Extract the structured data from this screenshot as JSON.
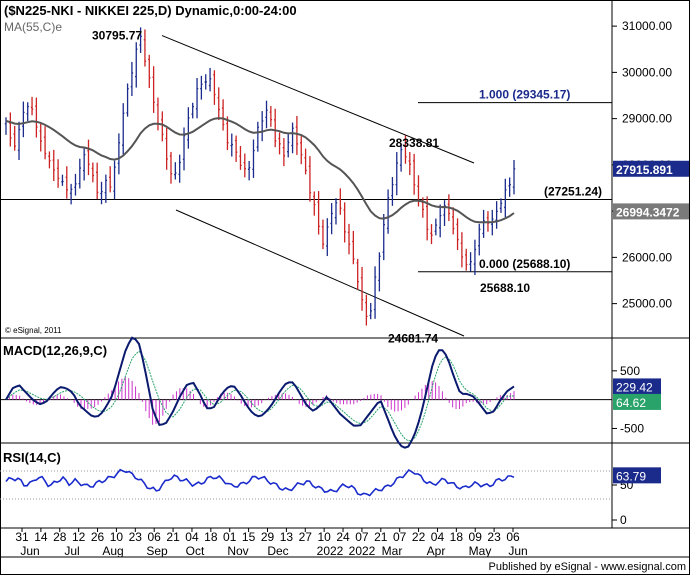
{
  "header": {
    "title": "($N225-NKI - NIKKEI 225,D) Dynamic,0:00-24:00",
    "ma_label": "MA(55,C)e",
    "copyright": "© eSignal, 2011"
  },
  "footer": {
    "published": "Published by eSignal - www.esignal.com"
  },
  "colors": {
    "up": "#cc2222",
    "down": "#1a2b8c",
    "ma": "#555555",
    "fib": "#1a2b8c",
    "macd": "#0a1a6e",
    "signal": "#29a36a",
    "hist": "#cc33cc",
    "rsi": "#1a2bcc",
    "current_box": "#1a2b8c"
  },
  "chart_data": [
    {
      "type": "candlestick",
      "title": "($N225-NKI - NIKKEI 225,D) Dynamic,0:00-24:00",
      "ylim": [
        24300,
        31500
      ],
      "y_ticks": [
        25000,
        26000,
        27000,
        28000,
        29000,
        30000,
        31000
      ],
      "y_tick_labels": [
        "25000.00",
        "26000.00",
        "27000.00",
        "28000.00",
        "29000.00",
        "30000.00",
        "31000.00"
      ],
      "x_tick_labels": [
        "31",
        "14",
        "28",
        "12",
        "26",
        "10",
        "23",
        "06",
        "21",
        "04",
        "18",
        "01",
        "15",
        "29",
        "13",
        "27",
        "10",
        "24",
        "07",
        "21",
        "07",
        "22",
        "04",
        "18",
        "09",
        "23",
        "06"
      ],
      "month_labels": [
        "Jun",
        "Jul",
        "Aug",
        "Sep",
        "Oct",
        "Nov",
        "Dec",
        "2022",
        "2022",
        "Mar",
        "Apr",
        "May",
        "Jun"
      ],
      "last_price": "27915.891",
      "ma_value": "26994.3472",
      "ma_period": "MA(55,C)e",
      "support_line": {
        "value": 27251.24,
        "label": "(27251.24)"
      },
      "fib_levels": [
        {
          "label": "1.000 (29345.17)",
          "value": 29345.17
        },
        {
          "label": "0.000 (25688.10)",
          "value": 25688.1
        }
      ],
      "annotations": [
        {
          "label": "30795.77",
          "value": 30795.77
        },
        {
          "label": "28338.81",
          "value": 28338.81
        },
        {
          "label": "25688.10",
          "value": 25688.1
        },
        {
          "label": "24681.74",
          "value": 24681.74
        }
      ],
      "close_path": [
        28900,
        28400,
        28600,
        29100,
        29300,
        29000,
        28700,
        28200,
        28100,
        27600,
        27800,
        27400,
        27500,
        27700,
        28300,
        28000,
        27500,
        27300,
        27700,
        27600,
        28300,
        29100,
        29700,
        30400,
        30795,
        30200,
        29600,
        29100,
        28600,
        28000,
        27600,
        28100,
        28700,
        29100,
        29500,
        29800,
        29900,
        29700,
        29200,
        28800,
        28500,
        28300,
        28000,
        27800,
        28200,
        28700,
        29000,
        29200,
        28700,
        28400,
        28100,
        28800,
        28600,
        28200,
        27600,
        27200,
        26700,
        26300,
        26800,
        27200,
        27000,
        26500,
        26000,
        25500,
        24900,
        24682,
        25400,
        26100,
        27000,
        27600,
        28000,
        28339,
        28100,
        27700,
        27200,
        26800,
        26400,
        26700,
        27100,
        27000,
        26700,
        26300,
        26000,
        25688,
        26200,
        26700,
        26900,
        26700,
        27000,
        27300,
        27600,
        27916
      ]
    },
    {
      "type": "line",
      "title": "MACD(12,26,9,C)",
      "ylim": [
        -700,
        1000
      ],
      "y_ticks": [
        500,
        -500
      ],
      "y_tick_labels": [
        "500",
        "-500"
      ],
      "macd_value": "229.42",
      "signal_value": "64.62",
      "macd_path": [
        0,
        200,
        250,
        120,
        0,
        -80,
        -40,
        100,
        220,
        200,
        120,
        -100,
        -200,
        -300,
        -280,
        -120,
        100,
        500,
        900,
        1100,
        950,
        400,
        -200,
        -450,
        -400,
        -200,
        50,
        250,
        300,
        100,
        -150,
        -150,
        50,
        200,
        250,
        100,
        -100,
        -250,
        -300,
        -200,
        -50,
        150,
        300,
        300,
        100,
        -100,
        -200,
        -100,
        50,
        -100,
        -250,
        -350,
        -450,
        -450,
        -300,
        -150,
        0,
        -300,
        -600,
        -800,
        -850,
        -650,
        -300,
        200,
        700,
        900,
        750,
        400,
        100,
        100,
        50,
        -100,
        -250,
        -200,
        0,
        150,
        229
      ],
      "signal_path": [
        0,
        100,
        170,
        150,
        90,
        30,
        0,
        40,
        110,
        160,
        150,
        80,
        -20,
        -130,
        -200,
        -200,
        -100,
        120,
        450,
        750,
        850,
        650,
        300,
        -20,
        -230,
        -300,
        -170,
        30,
        180,
        180,
        30,
        -90,
        -60,
        60,
        160,
        160,
        50,
        -100,
        -200,
        -220,
        -130,
        30,
        180,
        260,
        200,
        50,
        -100,
        -120,
        -40,
        -60,
        -160,
        -260,
        -360,
        -420,
        -380,
        -260,
        -110,
        -170,
        -370,
        -580,
        -720,
        -700,
        -480,
        -120,
        330,
        670,
        760,
        580,
        280,
        150,
        90,
        -20,
        -160,
        -210,
        -90,
        60,
        65
      ]
    },
    {
      "type": "line",
      "title": "RSI(14,C)",
      "ylim": [
        0,
        100
      ],
      "y_ticks": [
        50,
        0
      ],
      "y_tick_labels": [
        "50",
        "0"
      ],
      "ref_lines": [
        70,
        30
      ],
      "last_value": "63.79",
      "rsi_path": [
        55,
        60,
        58,
        50,
        52,
        62,
        58,
        48,
        55,
        60,
        52,
        56,
        52,
        48,
        50,
        55,
        58,
        62,
        68,
        72,
        65,
        60,
        52,
        45,
        42,
        50,
        60,
        62,
        58,
        55,
        50,
        52,
        58,
        62,
        60,
        55,
        48,
        50,
        52,
        58,
        62,
        60,
        55,
        50,
        45,
        42,
        48,
        52,
        55,
        50,
        45,
        42,
        40,
        45,
        50,
        48,
        40,
        35,
        38,
        42,
        45,
        48,
        55,
        62,
        68,
        70,
        62,
        55,
        50,
        55,
        58,
        52,
        48,
        45,
        50,
        52,
        50,
        48,
        55,
        58,
        60,
        64
      ]
    }
  ]
}
